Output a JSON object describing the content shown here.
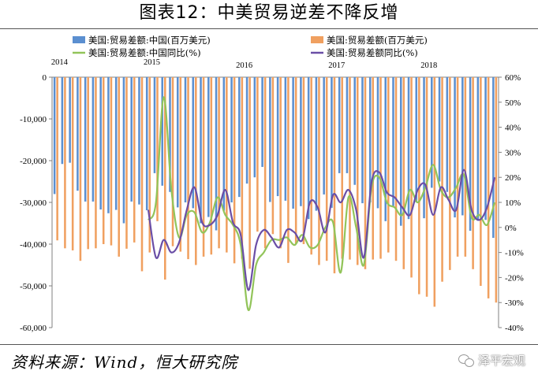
{
  "title": "图表12：中美贸易逆差不降反增",
  "source": "资料来源：Wind，恒大研究院",
  "watermark": {
    "text": "泽平宏观",
    "icon": "wechat-icon"
  },
  "chart_data": {
    "type": "bar+line",
    "x_start": "2014-01",
    "year_labels": [
      "2014",
      "2015",
      "2016",
      "2017",
      "2018"
    ],
    "year_label_months": [
      "2014-01",
      "2015-01",
      "2016-01",
      "2017-01",
      "2018-01"
    ],
    "left_axis": {
      "min": -60000,
      "max": 0,
      "ticks": [
        "0",
        "-10,000",
        "-20,000",
        "-30,000",
        "-40,000",
        "-50,000",
        "-60,000"
      ]
    },
    "right_axis": {
      "min": -40,
      "max": 60,
      "ticks": [
        "60%",
        "50%",
        "40%",
        "30%",
        "20%",
        "10%",
        "0%",
        "-10%",
        "-20%",
        "-30%",
        "-40%"
      ]
    },
    "legend": [
      {
        "name": "美国:贸易差额:中国(百万美元)",
        "kind": "bar",
        "color": "#5b8fd0"
      },
      {
        "name": "美国:贸易差额(百万美元)",
        "kind": "bar",
        "color": "#f0a060"
      },
      {
        "name": "美国:贸易差额:中国同比(%)",
        "kind": "line",
        "color": "#92c45a"
      },
      {
        "name": "美国:贸易差额同比(%)",
        "kind": "line",
        "color": "#6a4ea6"
      }
    ],
    "series": [
      {
        "name": "美国:贸易差额:中国(百万美元)",
        "axis": "left",
        "values": [
          -28000,
          -20800,
          -20500,
          -27200,
          -29800,
          -29800,
          -31700,
          -32600,
          -31800,
          -35000,
          -29800,
          -30500,
          -31900,
          -23000,
          -26000,
          -27500,
          -31200,
          -30000,
          -31400,
          -35000,
          -33500,
          -36700,
          -32000,
          -30000,
          -28700,
          -25500,
          -24000,
          -21500,
          -29900,
          -28500,
          -29600,
          -31500,
          -30900,
          -34000,
          -32000,
          -28100,
          -31300,
          -23000,
          -23000,
          -25800,
          -30200,
          -30000,
          -31400,
          -34500,
          -30900,
          -35600,
          -34000,
          -30000,
          -33800,
          -26500,
          -25000,
          -27500,
          -33600,
          -33100,
          -36800,
          -34400,
          -34200,
          -38500
        ]
      },
      {
        "name": "美国:贸易差额(百万美元)",
        "axis": "left",
        "values": [
          -39100,
          -41000,
          -41500,
          -44000,
          -41200,
          -41000,
          -40000,
          -40300,
          -43000,
          -41100,
          -39600,
          -46500,
          -42000,
          -34500,
          -48500,
          -40500,
          -41800,
          -43600,
          -45000,
          -43000,
          -42500,
          -41000,
          -42000,
          -44600,
          -43500,
          -45900,
          -37000,
          -41000,
          -37600,
          -41000,
          -44500,
          -40000,
          -40000,
          -42500,
          -45000,
          -44000,
          -47000,
          -43500,
          -43700,
          -45000,
          -46000,
          -43700,
          -43500,
          -42000,
          -44000,
          -46000,
          -48000,
          -52000,
          -52600,
          -55000,
          -49000,
          -46200,
          -43000,
          -43000,
          -46000,
          -50000,
          -53000,
          -54000
        ]
      },
      {
        "name": "美国:贸易差额:中国同比(%)",
        "axis": "right",
        "values": [
          null,
          null,
          null,
          null,
          null,
          null,
          null,
          null,
          null,
          null,
          null,
          null,
          3,
          10,
          52,
          15,
          -4,
          5,
          6,
          -2,
          2,
          12,
          5,
          1,
          -7,
          -33,
          -15,
          -10,
          -5,
          -5,
          -4,
          -7,
          -3,
          -8,
          -7,
          0,
          2,
          -18,
          12,
          0,
          -15,
          16,
          20,
          10,
          8,
          5,
          15,
          10,
          16,
          25,
          15,
          12,
          16,
          21,
          4,
          5,
          1,
          10
        ]
      },
      {
        "name": "美国:贸易差额同比(%)",
        "axis": "right",
        "values": [
          null,
          null,
          null,
          null,
          null,
          null,
          null,
          null,
          null,
          null,
          null,
          null,
          7,
          -12,
          -5,
          -10,
          -6,
          7,
          16,
          2,
          1,
          5,
          15,
          2,
          -3,
          -25,
          -7,
          -1,
          -4,
          -8,
          -1,
          -2,
          -5,
          10,
          8,
          -2,
          13,
          10,
          15,
          7,
          -12,
          18,
          22,
          14,
          12,
          8,
          5,
          15,
          17,
          5,
          16,
          11,
          7,
          23,
          7,
          3,
          8,
          20
        ]
      }
    ],
    "xlabel": "",
    "ylabel": "",
    "grid": false
  }
}
